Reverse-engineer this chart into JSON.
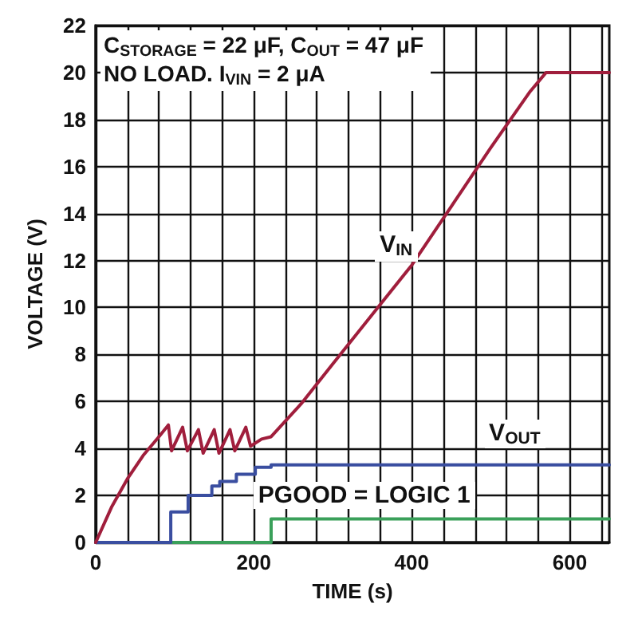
{
  "chart_data": {
    "type": "line",
    "xlabel": "TIME (s)",
    "ylabel": "VOLTAGE (V)",
    "annotations": [
      "C$_{STORAGE}$ = 22 μF, C$_{OUT}$ = 47 μF",
      "NO LOAD. I$_{VIN}$ = 2 μA"
    ],
    "xlim": [
      0,
      650
    ],
    "ylim": [
      0,
      22
    ],
    "xticks": [
      0,
      {
        "value": 40,
        "label": null
      },
      {
        "value": 80,
        "label": null
      },
      {
        "value": 120,
        "label": null
      },
      {
        "value": 160,
        "label": null
      },
      200,
      {
        "value": 240,
        "label": null
      },
      {
        "value": 280,
        "label": null
      },
      {
        "value": 320,
        "label": null
      },
      {
        "value": 360,
        "label": null
      },
      400,
      {
        "value": 440,
        "label": null
      },
      {
        "value": 480,
        "label": null
      },
      {
        "value": 520,
        "label": null
      },
      {
        "value": 560,
        "label": null
      },
      600,
      {
        "value": 640,
        "label": null
      }
    ],
    "yticks": [
      0,
      2,
      4,
      6,
      8,
      10,
      12,
      14,
      16,
      18,
      20,
      22
    ],
    "grid": true,
    "legend": false,
    "marker": "none",
    "line_style": "solid",
    "series": [
      {
        "name": "V$_{IN}$",
        "color": "#a01e3c",
        "x": [
          0,
          20,
          40,
          60,
          80,
          92,
          96,
          110,
          116,
          130,
          136,
          150,
          156,
          170,
          176,
          190,
          196,
          210,
          222,
          260,
          300,
          350,
          400,
          450,
          500,
          550,
          570,
          600,
          650
        ],
        "values": [
          0,
          1.5,
          2.7,
          3.7,
          4.5,
          5.0,
          3.9,
          4.9,
          3.9,
          4.8,
          3.8,
          4.8,
          3.8,
          4.8,
          3.9,
          4.9,
          4.1,
          4.4,
          4.5,
          5.9,
          7.6,
          9.7,
          11.8,
          14.3,
          16.8,
          19.2,
          20,
          20,
          20
        ]
      },
      {
        "name": "V$_{OUT}$",
        "color": "#3a4ea0",
        "x": [
          0,
          95,
          95,
          117,
          117,
          147,
          147,
          157,
          157,
          178,
          178,
          202,
          202,
          222,
          222,
          650
        ],
        "values": [
          0,
          0,
          1.3,
          1.3,
          2.0,
          2.0,
          2.4,
          2.4,
          2.6,
          2.6,
          2.9,
          2.9,
          3.2,
          3.2,
          3.3,
          3.3
        ]
      },
      {
        "name": "PGOOD = LOGIC 1",
        "color": "#3aa05a",
        "x": [
          0,
          222,
          222,
          650
        ],
        "values": [
          0,
          0,
          1,
          1
        ]
      }
    ]
  }
}
